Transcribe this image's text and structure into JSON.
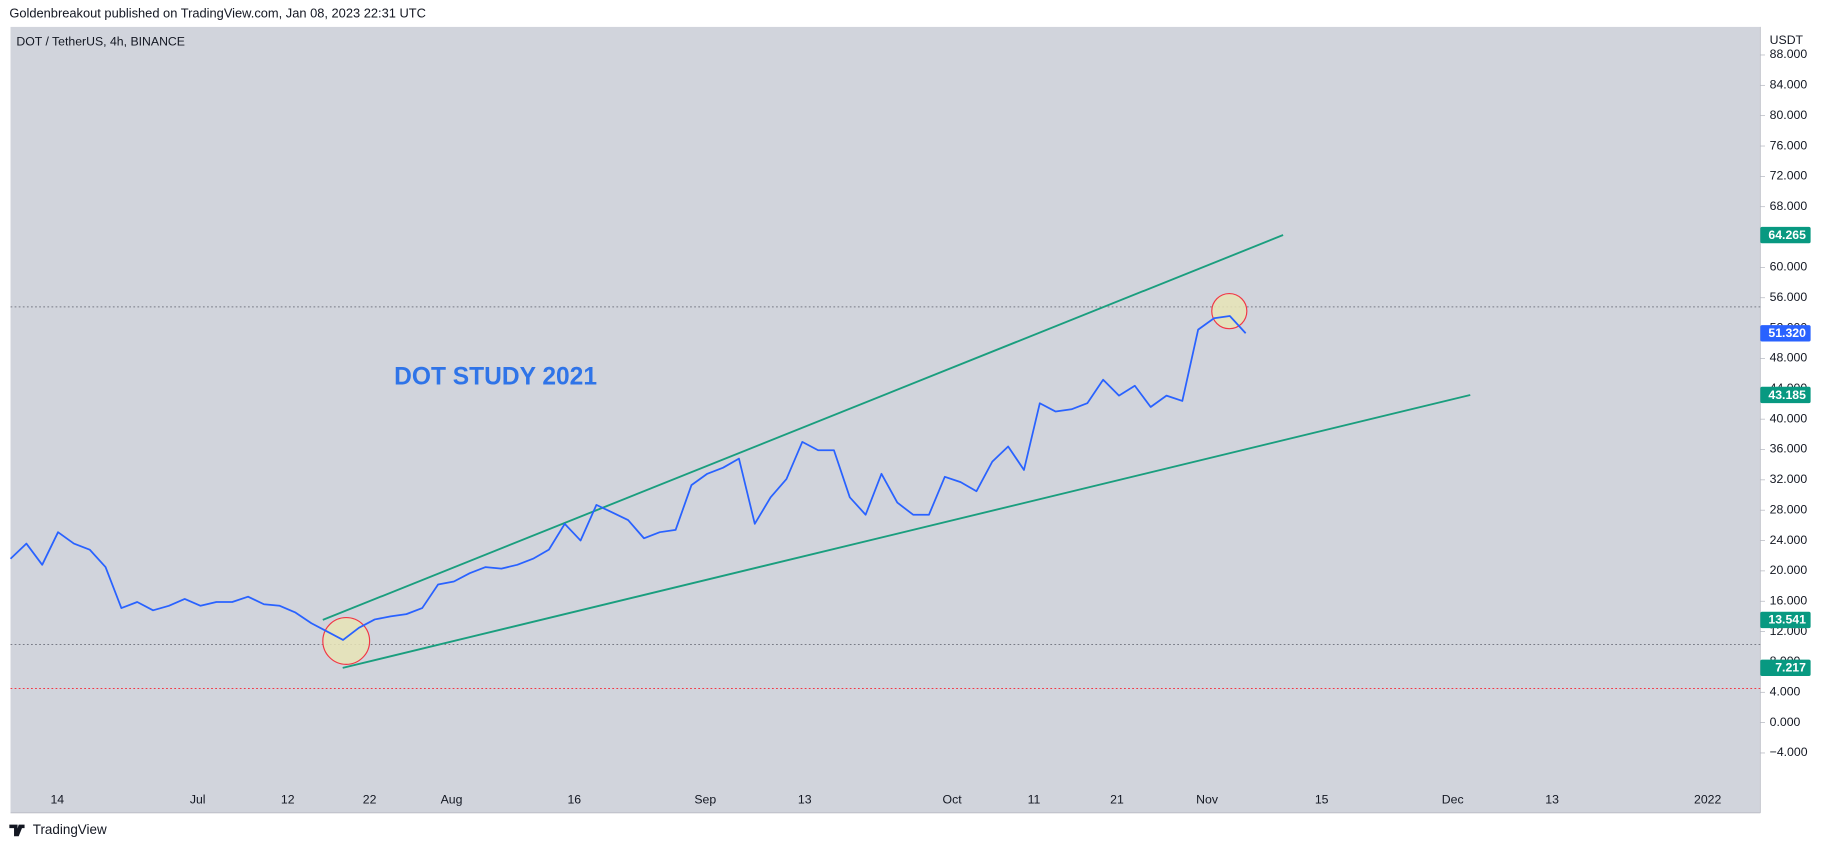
{
  "header": "Goldenbreakout published on TradingView.com, Jan 08, 2023 22:31 UTC",
  "footer": "TradingView",
  "chart_data": {
    "type": "line",
    "symbol": "DOT / TetherUS, 4h, BINANCE",
    "y_unit": "USDT",
    "annotation": "DOT STUDY 2021",
    "xtick_labels": [
      "14",
      "Jul",
      "12",
      "22",
      "Aug",
      "16",
      "Sep",
      "13",
      "Oct",
      "11",
      "21",
      "Nov",
      "15",
      "Dec",
      "13",
      "2022"
    ],
    "ylim": [
      -11.9,
      91.7
    ],
    "yticks": [
      {
        "value": 88,
        "label": "88.000"
      },
      {
        "value": 84,
        "label": "84.000"
      },
      {
        "value": 80,
        "label": "80.000"
      },
      {
        "value": 76,
        "label": "76.000"
      },
      {
        "value": 72,
        "label": "72.000"
      },
      {
        "value": 68,
        "label": "68.000"
      },
      {
        "value": 64,
        "label": "64.000"
      },
      {
        "value": 60,
        "label": "60.000"
      },
      {
        "value": 56,
        "label": "56.000"
      },
      {
        "value": 52,
        "label": "52.000"
      },
      {
        "value": 48,
        "label": "48.000"
      },
      {
        "value": 44,
        "label": "44.000"
      },
      {
        "value": 40,
        "label": "40.000"
      },
      {
        "value": 36,
        "label": "36.000"
      },
      {
        "value": 32,
        "label": "32.000"
      },
      {
        "value": 28,
        "label": "28.000"
      },
      {
        "value": 24,
        "label": "24.000"
      },
      {
        "value": 20,
        "label": "20.000"
      },
      {
        "value": 16,
        "label": "16.000"
      },
      {
        "value": 12,
        "label": "12.000"
      },
      {
        "value": 8,
        "label": "8.000"
      },
      {
        "value": 4,
        "label": "4.000"
      },
      {
        "value": 0,
        "label": "0.000"
      },
      {
        "value": -4,
        "label": "−4.000"
      }
    ],
    "series": [
      {
        "color": "#2962ff",
        "values": [
          21.6,
          23.6,
          20.8,
          25.1,
          23.6,
          22.8,
          20.5,
          15.1,
          15.9,
          14.8,
          15.4,
          16.3,
          15.4,
          15.9,
          15.9,
          16.6,
          15.6,
          15.4,
          14.5,
          13.1,
          12.0,
          10.9,
          12.5,
          13.6,
          14.0,
          14.3,
          15.1,
          18.2,
          18.6,
          19.7,
          20.5,
          20.3,
          20.8,
          21.6,
          22.8,
          26.2,
          24.0,
          28.7,
          27.7,
          26.7,
          24.3,
          25.1,
          25.4,
          31.3,
          32.8,
          33.6,
          34.8,
          26.2,
          29.7,
          32.1,
          37.0,
          35.9,
          35.9,
          29.7,
          27.4,
          32.8,
          29.0,
          27.4,
          27.4,
          32.4,
          31.7,
          30.5,
          34.4,
          36.4,
          33.3,
          42.1,
          41.0,
          41.3,
          42.1,
          45.2,
          43.1,
          44.4,
          41.6,
          43.1,
          42.4,
          51.8,
          53.3,
          53.6,
          51.32
        ],
        "value_labels": {
          "78": "51.320"
        }
      }
    ],
    "trendlines": [
      {
        "color": "#1a9e7e",
        "start": 13.541,
        "end": 64.265
      },
      {
        "color": "#1a9e7e",
        "start": 7.217,
        "end": 43.185
      }
    ],
    "hlines": [
      {
        "value": 54.8,
        "color": "#787b86"
      },
      {
        "value": 10.3,
        "color": "#787b86"
      },
      {
        "value": 4.5,
        "color": "#f23645"
      }
    ]
  }
}
